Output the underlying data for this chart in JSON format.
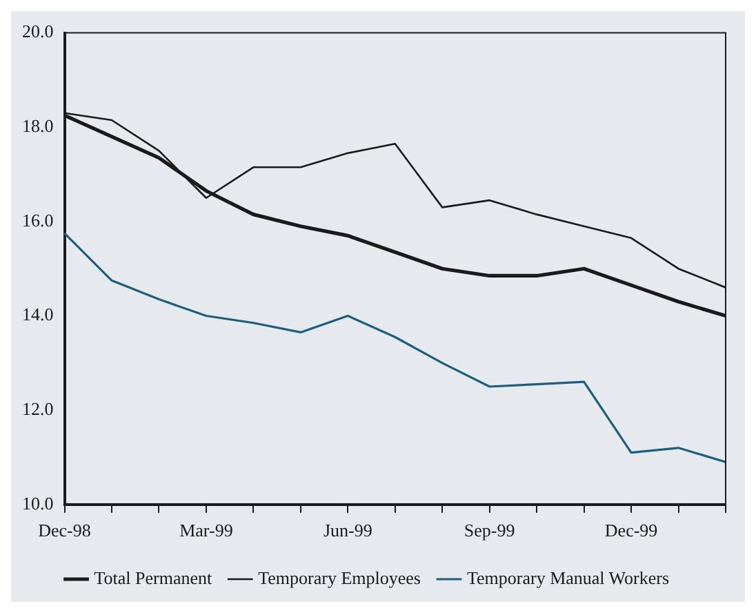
{
  "chart_data": {
    "type": "line",
    "categories": [
      "Dec-98",
      null,
      null,
      "Mar-99",
      null,
      null,
      "Jun-99",
      null,
      null,
      "Sep-99",
      null,
      null,
      "Dec-99",
      null,
      null
    ],
    "series": [
      {
        "name": "Total Permanent",
        "color": "#1a1a1a",
        "values": [
          18.25,
          17.8,
          17.35,
          16.65,
          16.15,
          15.9,
          15.7,
          15.35,
          15.0,
          14.85,
          14.85,
          15.0,
          14.65,
          14.3,
          14.0
        ]
      },
      {
        "name": "Temporary Employees",
        "color": "#1a1a1a",
        "values": [
          18.3,
          18.15,
          17.5,
          16.5,
          17.15,
          17.15,
          17.45,
          17.65,
          16.3,
          16.45,
          16.15,
          15.9,
          15.65,
          15.0,
          14.6
        ]
      },
      {
        "name": "Temporary Manual Workers",
        "color": "#1a5f80",
        "values": [
          15.75,
          14.75,
          14.35,
          14.0,
          13.85,
          13.65,
          14.0,
          13.55,
          13.0,
          12.5,
          12.55,
          12.6,
          11.1,
          11.2,
          10.9
        ]
      }
    ],
    "ylim": [
      10,
      20
    ],
    "yticks": [
      {
        "value": 10,
        "label": "10.0"
      },
      {
        "value": 12,
        "label": "12.0"
      },
      {
        "value": 14,
        "label": "14.0"
      },
      {
        "value": 16,
        "label": "16.0"
      },
      {
        "value": 18,
        "label": "18.0"
      },
      {
        "value": 20,
        "label": "20.0"
      }
    ],
    "grid": false,
    "legend": "bottom",
    "marker": "none",
    "line_style": "solid"
  }
}
